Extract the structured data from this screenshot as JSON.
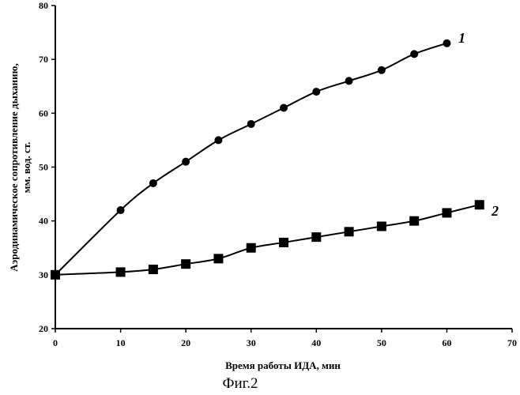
{
  "chart_data": {
    "type": "line",
    "xlabel": "Время работы ИДА, мин",
    "ylabel": [
      "Аэродинамическое сопротивление дыханию,",
      "мм. вод. ст."
    ],
    "xlim": [
      0,
      70
    ],
    "ylim": [
      20,
      80
    ],
    "x_ticks": [
      0,
      10,
      20,
      30,
      40,
      50,
      60,
      70
    ],
    "y_ticks": [
      20,
      30,
      40,
      50,
      60,
      70,
      80
    ],
    "grid": false,
    "series": [
      {
        "name": "1",
        "marker": "circle",
        "x": [
          0,
          10,
          15,
          20,
          25,
          30,
          35,
          40,
          45,
          50,
          55,
          60
        ],
        "y": [
          30.0,
          42.0,
          47.0,
          51.0,
          55.0,
          58.0,
          61.0,
          64.0,
          66.0,
          68.0,
          71.0,
          73.0
        ]
      },
      {
        "name": "2",
        "marker": "square",
        "x": [
          0,
          10,
          15,
          20,
          25,
          30,
          35,
          40,
          45,
          50,
          55,
          60,
          65
        ],
        "y": [
          30.0,
          30.5,
          31.0,
          32.0,
          33.0,
          35.0,
          36.0,
          37.0,
          38.0,
          39.0,
          40.0,
          41.5,
          43.0
        ]
      }
    ]
  },
  "caption": "Фиг.2",
  "colors": {
    "line": "#000000",
    "background": "#ffffff"
  }
}
